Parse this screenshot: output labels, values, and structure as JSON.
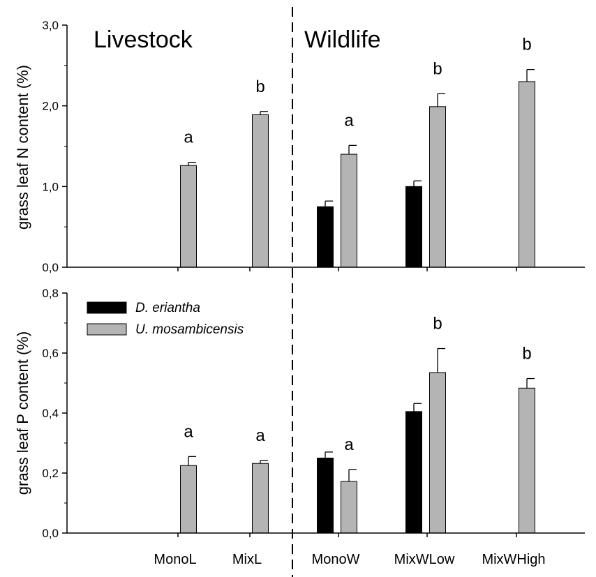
{
  "chart_data": [
    {
      "type": "bar",
      "categories": [
        "MonoL",
        "MixL",
        "MonoW",
        "MixWLow",
        "MixWHigh"
      ],
      "ylabel": "grass leaf N content (%)",
      "ylim": [
        0,
        3.0
      ],
      "yticks": [
        "0,0",
        "1,0",
        "2,0",
        "3,0"
      ],
      "section_labels": [
        "Livestock",
        "Wildlife"
      ],
      "series": [
        {
          "name": "D. eriantha",
          "color": "#000000",
          "values": [
            null,
            null,
            0.75,
            1.0,
            null
          ],
          "errors": [
            null,
            null,
            0.07,
            0.07,
            null
          ]
        },
        {
          "name": "U. mosambicensis",
          "color": "#b4b4b4",
          "values": [
            1.26,
            1.89,
            1.4,
            1.99,
            2.3
          ],
          "errors": [
            0.04,
            0.04,
            0.11,
            0.16,
            0.15
          ]
        }
      ],
      "significance": [
        "a",
        "b",
        "a",
        "b",
        "b"
      ]
    },
    {
      "type": "bar",
      "categories": [
        "MonoL",
        "MixL",
        "MonoW",
        "MixWLow",
        "MixWHigh"
      ],
      "ylabel": "grass leaf P content (%)",
      "ylim": [
        0,
        0.8
      ],
      "yticks": [
        "0,0",
        "0,2",
        "0,4",
        "0,6",
        "0,8"
      ],
      "series": [
        {
          "name": "D. eriantha",
          "color": "#000000",
          "values": [
            null,
            null,
            0.25,
            0.405,
            null
          ],
          "errors": [
            null,
            null,
            0.02,
            0.027,
            null
          ]
        },
        {
          "name": "U. mosambicensis",
          "color": "#b4b4b4",
          "values": [
            0.225,
            0.232,
            0.172,
            0.535,
            0.483
          ],
          "errors": [
            0.03,
            0.01,
            0.04,
            0.08,
            0.032
          ]
        }
      ],
      "significance": [
        "a",
        "a",
        "a",
        "b",
        "b"
      ],
      "legend": {
        "position": "top-left",
        "entries": [
          "D. eriantha",
          "U. mosambicensis"
        ]
      }
    }
  ]
}
